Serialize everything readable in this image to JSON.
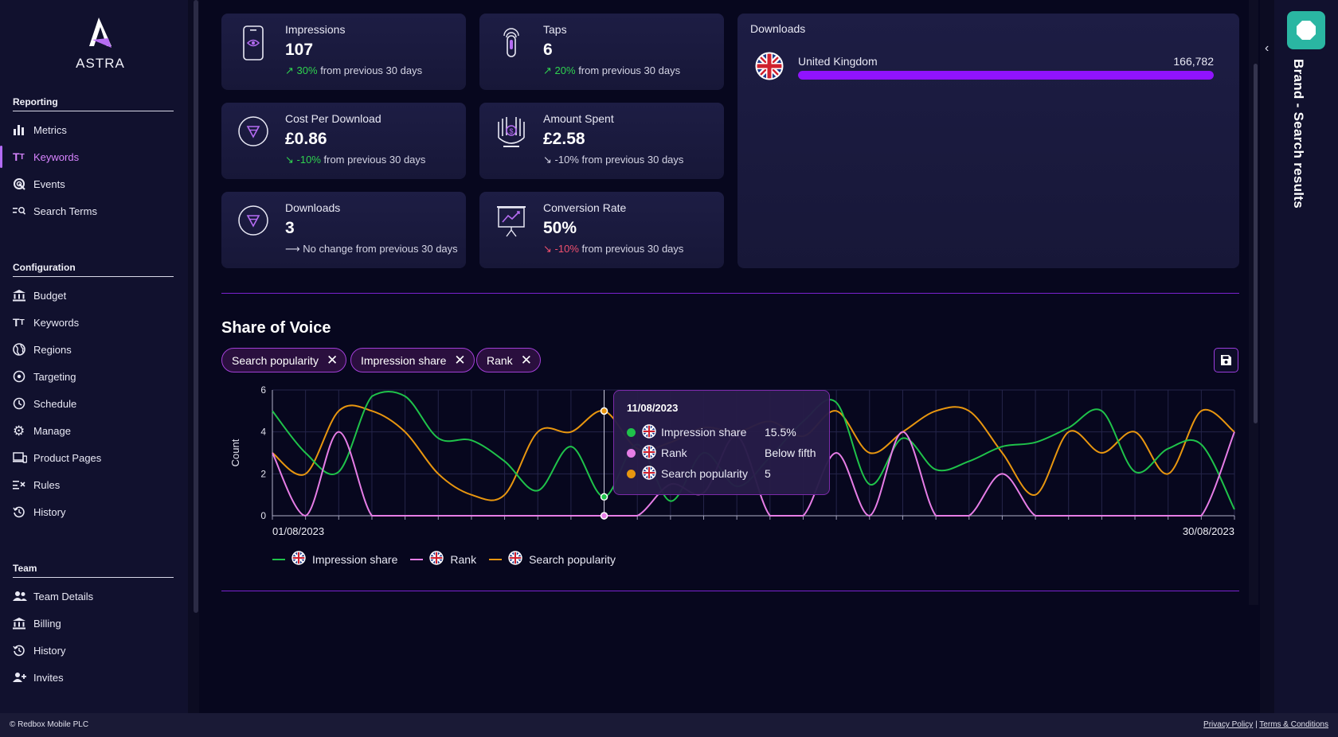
{
  "app": {
    "name": "ASTRA"
  },
  "sidebar": {
    "reporting": {
      "heading": "Reporting",
      "items": [
        {
          "label": "Metrics",
          "icon": "bar-chart-icon"
        },
        {
          "label": "Keywords",
          "icon": "text-size-icon",
          "active": true
        },
        {
          "label": "Events",
          "icon": "radar-icon"
        },
        {
          "label": "Search Terms",
          "icon": "search-list-icon"
        }
      ]
    },
    "configuration": {
      "heading": "Configuration",
      "items": [
        {
          "label": "Budget",
          "icon": "bank-icon"
        },
        {
          "label": "Keywords",
          "icon": "text-size-icon"
        },
        {
          "label": "Regions",
          "icon": "globe-icon"
        },
        {
          "label": "Targeting",
          "icon": "target-icon"
        },
        {
          "label": "Schedule",
          "icon": "clock-icon"
        },
        {
          "label": "Manage",
          "icon": "gear-icon"
        },
        {
          "label": "Product Pages",
          "icon": "devices-icon"
        },
        {
          "label": "Rules",
          "icon": "rules-icon"
        },
        {
          "label": "History",
          "icon": "history-icon"
        }
      ]
    },
    "team": {
      "heading": "Team",
      "items": [
        {
          "label": "Team Details",
          "icon": "people-icon"
        },
        {
          "label": "Billing",
          "icon": "bank-icon"
        },
        {
          "label": "History",
          "icon": "history-icon"
        },
        {
          "label": "Invites",
          "icon": "add-person-icon"
        }
      ]
    }
  },
  "metrics": [
    {
      "label": "Impressions",
      "value": "107",
      "trend": "up",
      "change_value": "30%",
      "change_text": "from previous 30 days",
      "icon": "phone-eye-icon"
    },
    {
      "label": "Taps",
      "value": "6",
      "trend": "up",
      "change_value": "20%",
      "change_text": "from previous 30 days",
      "icon": "tap-icon"
    },
    {
      "label": "Cost Per Download",
      "value": "£0.86",
      "trend": "down-good",
      "change_value": "-10%",
      "change_text": "from previous 30 days",
      "icon": "download-circle-icon"
    },
    {
      "label": "Amount Spent",
      "value": "£2.58",
      "trend": "down-neutral",
      "change_value": "-10%",
      "change_text": "from previous 30 days",
      "icon": "hand-money-icon"
    },
    {
      "label": "Downloads",
      "value": "3",
      "trend": "flat",
      "change_value": "",
      "change_text": "No change from previous 30 days",
      "icon": "download-circle-icon"
    },
    {
      "label": "Conversion Rate",
      "value": "50%",
      "trend": "down-bad",
      "change_value": "-10%",
      "change_text": "from previous 30 days",
      "icon": "presentation-chart-icon"
    }
  ],
  "downloads_panel": {
    "title": "Downloads",
    "country": "United Kingdom",
    "value": "166,782",
    "fill_fraction": 1.0,
    "bar_color": "#9013fe"
  },
  "share_of_voice": {
    "title": "Share of Voice",
    "chips": [
      "Search popularity",
      "Impression share",
      "Rank"
    ],
    "save_icon": "save-icon"
  },
  "tooltip": {
    "date": "11/08/2023",
    "rows": [
      {
        "name": "Impression share",
        "value": "15.5%",
        "color": "#1fc24a"
      },
      {
        "name": "Rank",
        "value": "Below fifth",
        "color": "#e67de6"
      },
      {
        "name": "Search popularity",
        "value": "5",
        "color": "#e8960f"
      }
    ]
  },
  "chart_data": {
    "type": "line",
    "ylabel": "Count",
    "xlabel": "",
    "ylim": [
      0,
      6
    ],
    "yticks": [
      0,
      2,
      4,
      6
    ],
    "x_start_label": "01/08/2023",
    "x_end_label": "30/08/2023",
    "x": [
      1,
      2,
      3,
      4,
      5,
      6,
      7,
      8,
      9,
      10,
      11,
      12,
      13,
      14,
      15,
      16,
      17,
      18,
      19,
      20,
      21,
      22,
      23,
      24,
      25,
      26,
      27,
      28,
      29,
      30
    ],
    "series": [
      {
        "name": "Impression share",
        "color": "#1fc24a",
        "values": [
          5.0,
          3.0,
          2.1,
          5.7,
          5.7,
          3.7,
          3.6,
          2.6,
          1.2,
          3.3,
          0.9,
          3.4,
          0.7,
          3.0,
          1.4,
          2.8,
          4.5,
          5.4,
          1.5,
          3.7,
          2.2,
          2.6,
          3.3,
          3.5,
          4.2,
          5.0,
          2.1,
          3.2,
          3.4,
          0.3
        ]
      },
      {
        "name": "Rank",
        "color": "#e67de6",
        "values": [
          3,
          0,
          4,
          0,
          0,
          0,
          0,
          0,
          0,
          0,
          0,
          0,
          1.5,
          1.1,
          3.8,
          0,
          0,
          3,
          0,
          4,
          0,
          0,
          2,
          0,
          0,
          0,
          0,
          0,
          0,
          4
        ]
      },
      {
        "name": "Search popularity",
        "color": "#e8960f",
        "values": [
          3,
          2,
          5,
          5,
          4,
          2,
          1,
          1,
          4,
          4,
          5,
          3.2,
          3.5,
          4.2,
          4,
          4.5,
          3.8,
          5,
          3,
          4,
          5,
          5,
          3,
          1,
          4,
          3,
          4,
          2,
          5,
          4
        ]
      }
    ],
    "hover_index": 10,
    "legend_position": "bottom-left",
    "grid": true
  },
  "right_panel": {
    "title": "Brand - Search results",
    "collapse_icon": "chevron-left-icon"
  },
  "footer": {
    "copyright": "© Redbox Mobile PLC",
    "privacy": "Privacy Policy",
    "separator": "|",
    "terms": "Terms & Conditions"
  }
}
